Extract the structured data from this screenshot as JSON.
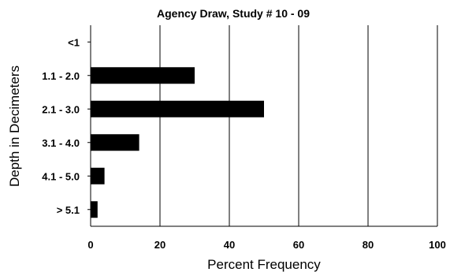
{
  "chart_data": {
    "type": "bar",
    "orientation": "horizontal",
    "title": "Agency Draw, Study # 10 - 09",
    "xlabel": "Percent Frequency",
    "ylabel": "Depth in Decimeters",
    "categories": [
      "<1",
      "1.1 - 2.0",
      "2.1 - 3.0",
      "3.1 - 4.0",
      "4.1 - 5.0",
      "> 5.1"
    ],
    "values": [
      0,
      30,
      50,
      14,
      4,
      2
    ],
    "xlim": [
      0,
      100
    ],
    "xticks": [
      "0",
      "20",
      "40",
      "60",
      "80",
      "100"
    ],
    "grid": "vertical",
    "bar_color": "#000000"
  }
}
